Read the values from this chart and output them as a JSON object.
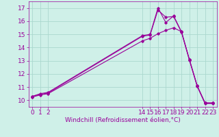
{
  "title": "",
  "xlabel": "Windchill (Refroidissement éolien,°C)",
  "ylabel": "",
  "bg_color": "#cff0e8",
  "line_color": "#990099",
  "grid_color": "#aad8ce",
  "ylim": [
    9.5,
    17.5
  ],
  "xlim": [
    -0.5,
    23.5
  ],
  "xticks": [
    0,
    1,
    2,
    14,
    15,
    16,
    17,
    18,
    19,
    20,
    21,
    22,
    23
  ],
  "yticks": [
    10,
    11,
    12,
    13,
    14,
    15,
    16,
    17
  ],
  "line1_x": [
    0,
    1,
    2,
    14,
    15,
    16,
    17,
    18,
    19,
    20,
    21,
    22,
    23
  ],
  "line1_y": [
    10.3,
    10.5,
    10.6,
    14.9,
    15.0,
    17.0,
    15.9,
    16.4,
    15.2,
    13.1,
    11.1,
    9.8,
    9.8
  ],
  "line2_x": [
    0,
    1,
    2,
    14,
    15,
    16,
    17,
    18,
    19,
    20,
    21,
    22,
    23
  ],
  "line2_y": [
    10.3,
    10.45,
    10.55,
    14.85,
    14.95,
    16.85,
    16.3,
    16.35,
    15.15,
    13.05,
    11.05,
    9.75,
    9.75
  ],
  "line3_x": [
    0,
    1,
    2,
    14,
    15,
    16,
    17,
    18,
    19,
    20,
    21,
    22,
    23
  ],
  "line3_y": [
    10.25,
    10.4,
    10.5,
    14.5,
    14.7,
    15.05,
    15.3,
    15.5,
    15.2,
    13.1,
    11.1,
    9.8,
    9.8
  ],
  "font_size": 6.5
}
